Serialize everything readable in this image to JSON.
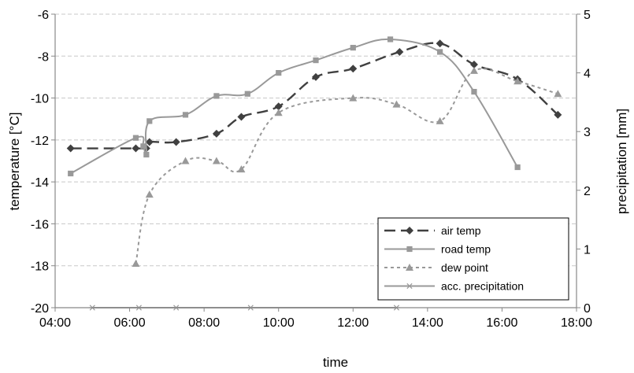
{
  "chart_data": {
    "type": "line",
    "xlabel": "time",
    "ylabel_left": "temperature [°C]",
    "ylabel_right": "precipitation [mm]",
    "x_ticks": [
      "04:00",
      "06:00",
      "08:00",
      "10:00",
      "12:00",
      "14:00",
      "16:00",
      "18:00"
    ],
    "y_left_ticks": [
      "-6",
      "-8",
      "-10",
      "-12",
      "-14",
      "-16",
      "-18",
      "-20"
    ],
    "y_right_ticks": [
      "5",
      "4",
      "3",
      "2",
      "1",
      "0"
    ],
    "xlim": [
      "04:00",
      "18:00"
    ],
    "ylim_left": [
      -20,
      -6
    ],
    "ylim_right": [
      0,
      5
    ],
    "gridlines": "horizontal dashed",
    "legend_position": "bottom-right",
    "series": [
      {
        "name": "air temp",
        "axis": "left",
        "color": "#404040",
        "line": "long-dash",
        "marker": "diamond",
        "points": [
          [
            "04:25",
            -12.4
          ],
          [
            "06:10",
            -12.4
          ],
          [
            "06:27",
            -12.4
          ],
          [
            "06:32",
            -12.1
          ],
          [
            "07:15",
            -12.1
          ],
          [
            "08:20",
            -11.7
          ],
          [
            "09:00",
            -10.9
          ],
          [
            "10:00",
            -10.4
          ],
          [
            "11:00",
            -9.0
          ],
          [
            "12:00",
            -8.6
          ],
          [
            "13:15",
            -7.8
          ],
          [
            "14:20",
            -7.4
          ],
          [
            "15:15",
            -8.4
          ],
          [
            "16:25",
            -9.1
          ],
          [
            "17:30",
            -10.8
          ]
        ]
      },
      {
        "name": "road temp",
        "axis": "left",
        "color": "#999999",
        "line": "solid",
        "marker": "square",
        "points": [
          [
            "04:25",
            -13.6
          ],
          [
            "06:10",
            -11.9
          ],
          [
            "06:22",
            -12.3
          ],
          [
            "06:27",
            -12.7
          ],
          [
            "06:32",
            -11.1
          ],
          [
            "07:30",
            -10.8
          ],
          [
            "08:20",
            -9.9
          ],
          [
            "09:10",
            -9.8
          ],
          [
            "10:00",
            -8.8
          ],
          [
            "11:00",
            -8.2
          ],
          [
            "12:00",
            -7.6
          ],
          [
            "13:00",
            -7.2
          ],
          [
            "14:20",
            -7.8
          ],
          [
            "15:15",
            -9.7
          ],
          [
            "16:25",
            -13.3
          ]
        ]
      },
      {
        "name": "dew point",
        "axis": "left",
        "color": "#999999",
        "line": "short-dash",
        "marker": "triangle",
        "points": [
          [
            "06:10",
            -17.9
          ],
          [
            "06:32",
            -14.6
          ],
          [
            "07:30",
            -13.0
          ],
          [
            "08:20",
            -13.0
          ],
          [
            "09:00",
            -13.4
          ],
          [
            "10:00",
            -10.7
          ],
          [
            "12:00",
            -10.0
          ],
          [
            "13:10",
            -10.3
          ],
          [
            "14:20",
            -11.1
          ],
          [
            "15:15",
            -8.7
          ],
          [
            "16:25",
            -9.2
          ],
          [
            "17:30",
            -9.8
          ]
        ]
      },
      {
        "name": "acc. precipitation",
        "axis": "right",
        "color": "#999999",
        "line": "solid",
        "marker": "asterisk",
        "points": [
          [
            "05:00",
            0
          ],
          [
            "06:15",
            0
          ],
          [
            "07:15",
            0
          ],
          [
            "09:15",
            0
          ],
          [
            "13:10",
            0
          ]
        ]
      }
    ]
  }
}
